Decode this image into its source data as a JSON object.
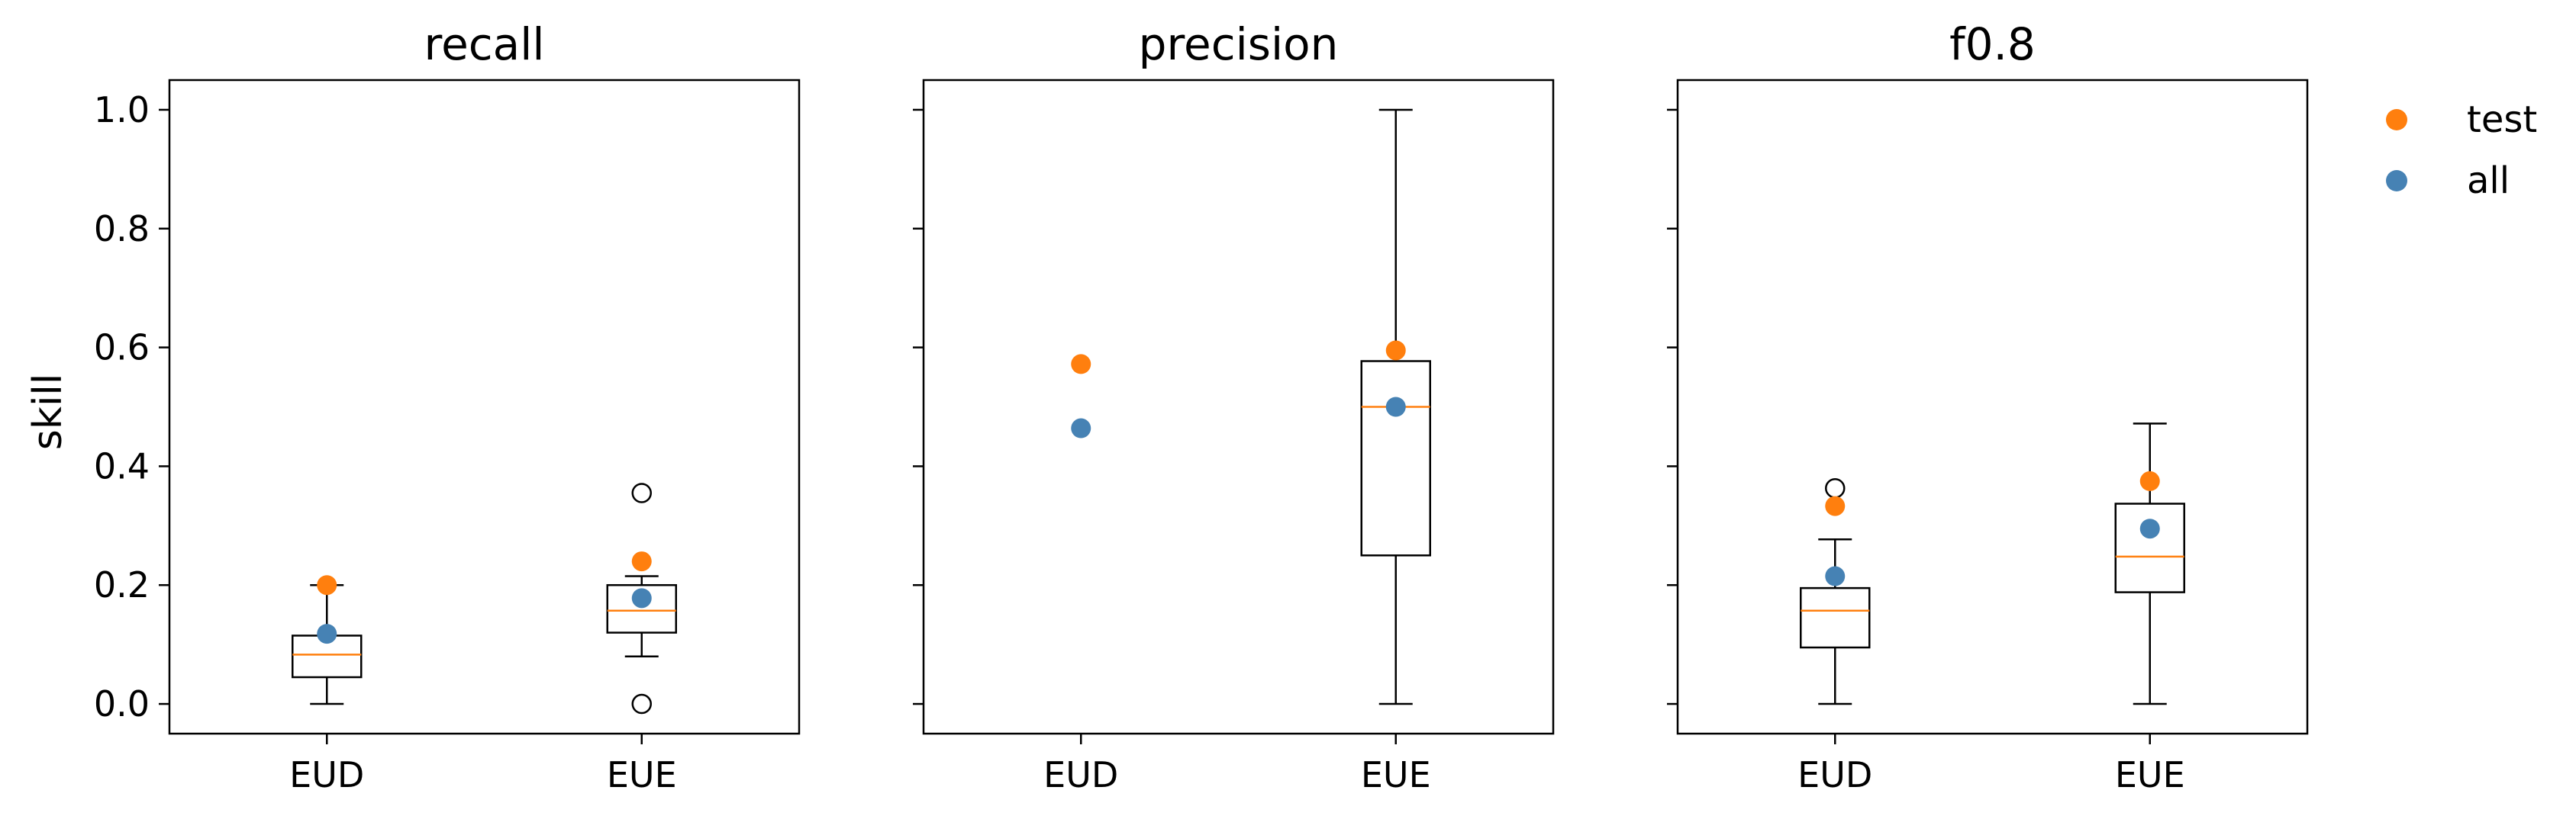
{
  "chart_data": {
    "type": "box",
    "ylabel": "skill",
    "categories": [
      "EUD",
      "EUE"
    ],
    "ylim": [
      -0.05,
      1.05
    ],
    "yticks": [
      0.0,
      0.2,
      0.4,
      0.6,
      0.8,
      1.0
    ],
    "ytick_labels": [
      "0.0",
      "0.2",
      "0.4",
      "0.6",
      "0.8",
      "1.0"
    ],
    "legend": {
      "placement": "outside-right-top",
      "entries": [
        {
          "name": "test",
          "color": "#ff7f0e"
        },
        {
          "name": "all",
          "color": "#4682b4"
        }
      ]
    },
    "colors": {
      "box": "#000000",
      "median": "#ff7f0e",
      "test": "#ff7f0e",
      "all": "#4682b4"
    },
    "panels": [
      {
        "title": "recall",
        "boxes": [
          {
            "category": "EUD",
            "whislo": 0.0,
            "q1": 0.045,
            "med": 0.083,
            "q3": 0.115,
            "whishi": 0.2,
            "fliers": []
          },
          {
            "category": "EUE",
            "whislo": 0.08,
            "q1": 0.12,
            "med": 0.157,
            "q3": 0.2,
            "whishi": 0.215,
            "fliers": [
              0.0,
              0.355
            ]
          }
        ],
        "test": [
          0.2,
          0.24
        ],
        "all": [
          0.118,
          0.178
        ]
      },
      {
        "title": "precision",
        "boxes": [
          {
            "category": "EUD",
            "whislo": null,
            "q1": null,
            "med": null,
            "q3": null,
            "whishi": null,
            "fliers": []
          },
          {
            "category": "EUE",
            "whislo": 0.0,
            "q1": 0.25,
            "med": 0.5,
            "q3": 0.577,
            "whishi": 1.0,
            "fliers": []
          }
        ],
        "test": [
          0.572,
          0.595
        ],
        "all": [
          0.464,
          0.5
        ]
      },
      {
        "title": "f0.8",
        "boxes": [
          {
            "category": "EUD",
            "whislo": 0.0,
            "q1": 0.095,
            "med": 0.157,
            "q3": 0.195,
            "whishi": 0.277,
            "fliers": [
              0.363
            ]
          },
          {
            "category": "EUE",
            "whislo": 0.0,
            "q1": 0.188,
            "med": 0.248,
            "q3": 0.337,
            "whishi": 0.472,
            "fliers": []
          }
        ],
        "test": [
          0.333,
          0.375
        ],
        "all": [
          0.215,
          0.295
        ]
      }
    ]
  }
}
